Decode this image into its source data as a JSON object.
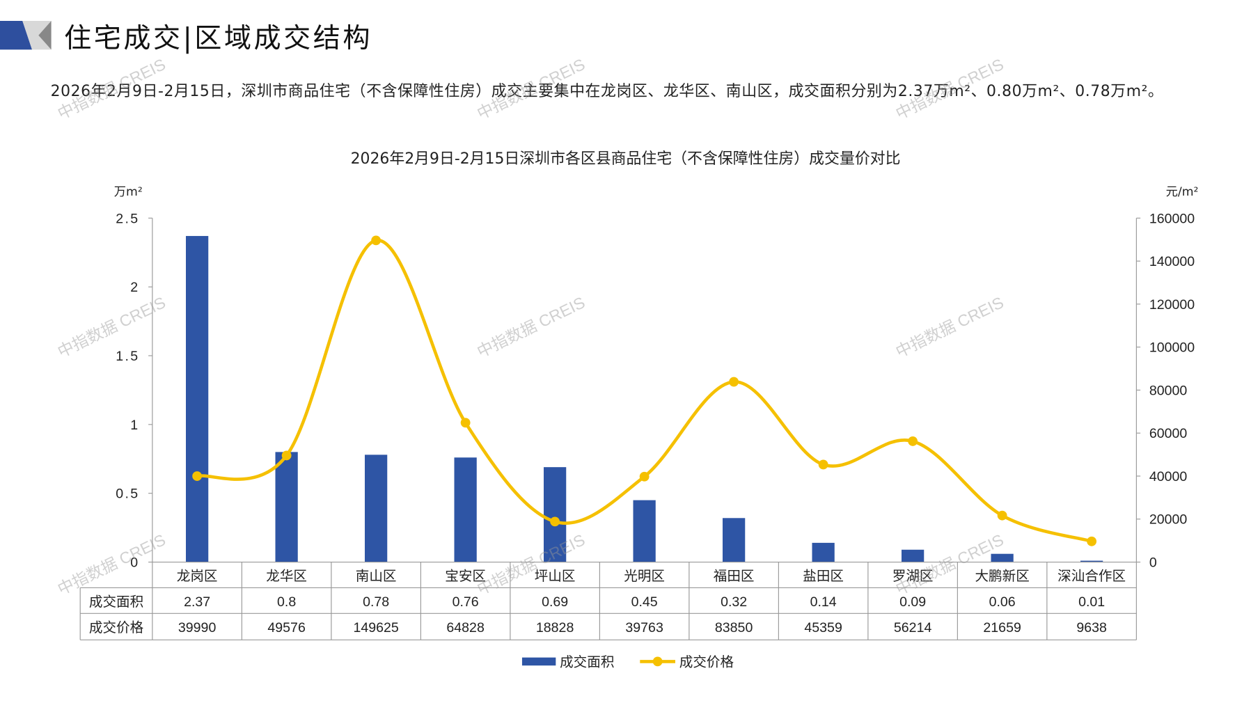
{
  "header": {
    "title": "住宅成交|区域成交结构"
  },
  "description": "2026年2月9日-2月15日，深圳市商品住宅（不含保障性住房）成交主要集中在龙岗区、龙华区、南山区，成交面积分别为2.37万m²、0.80万m²、0.78万m²。",
  "watermark": "中指数据 CREIS",
  "colors": {
    "bar": "#2e55a5",
    "line": "#f5c000",
    "accent": "#2e4f9e"
  },
  "chart_data": {
    "type": "bar+line",
    "title": "2026年2月9日-2月15日深圳市各区县商品住宅（不含保障性住房）成交量价对比",
    "ylabel": "万m²",
    "y2label": "元/m²",
    "ylim": [
      0,
      2.5
    ],
    "y2lim": [
      0,
      160000
    ],
    "yticks": [
      "0",
      "0.5",
      "1",
      "1.5",
      "2",
      "2.5"
    ],
    "y2ticks": [
      "0",
      "20000",
      "40000",
      "60000",
      "80000",
      "100000",
      "120000",
      "140000",
      "160000"
    ],
    "categories": [
      "龙岗区",
      "龙华区",
      "南山区",
      "宝安区",
      "坪山区",
      "光明区",
      "福田区",
      "盐田区",
      "罗湖区",
      "大鹏新区",
      "深汕合作区"
    ],
    "series": [
      {
        "name": "成交面积",
        "type": "bar",
        "axis": "left",
        "values": [
          2.37,
          0.8,
          0.78,
          0.76,
          0.69,
          0.45,
          0.32,
          0.14,
          0.09,
          0.06,
          0.01
        ]
      },
      {
        "name": "成交价格",
        "type": "line",
        "axis": "right",
        "values": [
          39990,
          49576,
          149625,
          64828,
          18828,
          39763,
          83850,
          45359,
          56214,
          21659,
          9638
        ]
      }
    ],
    "table_rows": [
      {
        "label": "成交面积",
        "values": [
          "2.37",
          "0.8",
          "0.78",
          "0.76",
          "0.69",
          "0.45",
          "0.32",
          "0.14",
          "0.09",
          "0.06",
          "0.01"
        ]
      },
      {
        "label": "成交价格",
        "values": [
          "39990",
          "49576",
          "149625",
          "64828",
          "18828",
          "39763",
          "83850",
          "45359",
          "56214",
          "21659",
          "9638"
        ]
      }
    ],
    "legend": [
      "成交面积",
      "成交价格"
    ],
    "legend_position": "bottom"
  }
}
